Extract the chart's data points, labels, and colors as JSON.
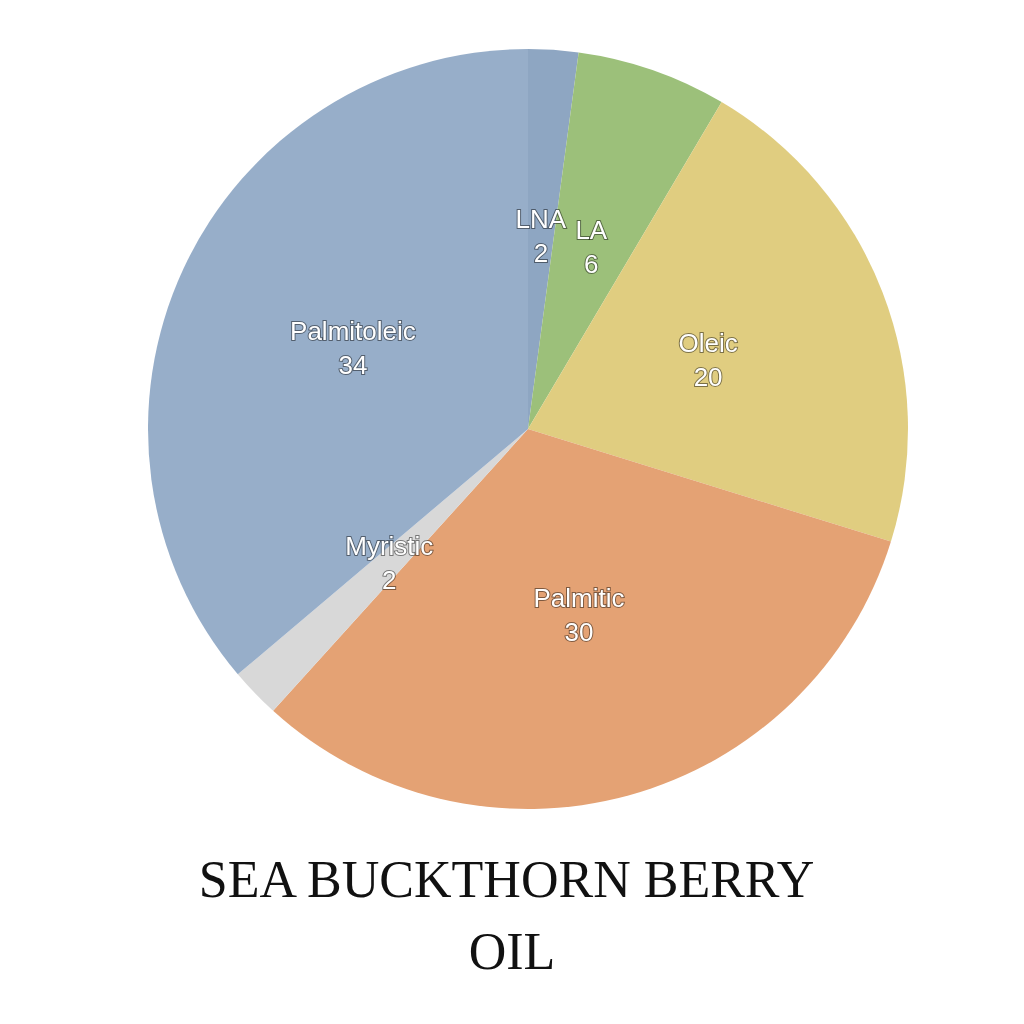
{
  "chart_data": {
    "type": "pie",
    "title": "SEA BUCKTHORN BERRY OIL",
    "categories": [
      "LNA",
      "LA",
      "Oleic",
      "Palmitic",
      "Myristic",
      "Palmitoleic"
    ],
    "values": [
      2,
      6,
      20,
      30,
      2,
      34
    ],
    "colors": [
      "#8ea6c2",
      "#9cc07a",
      "#e0cd80",
      "#e4a274",
      "#d8d8d8",
      "#97aec9"
    ],
    "data_labels": true,
    "legend": false
  }
}
